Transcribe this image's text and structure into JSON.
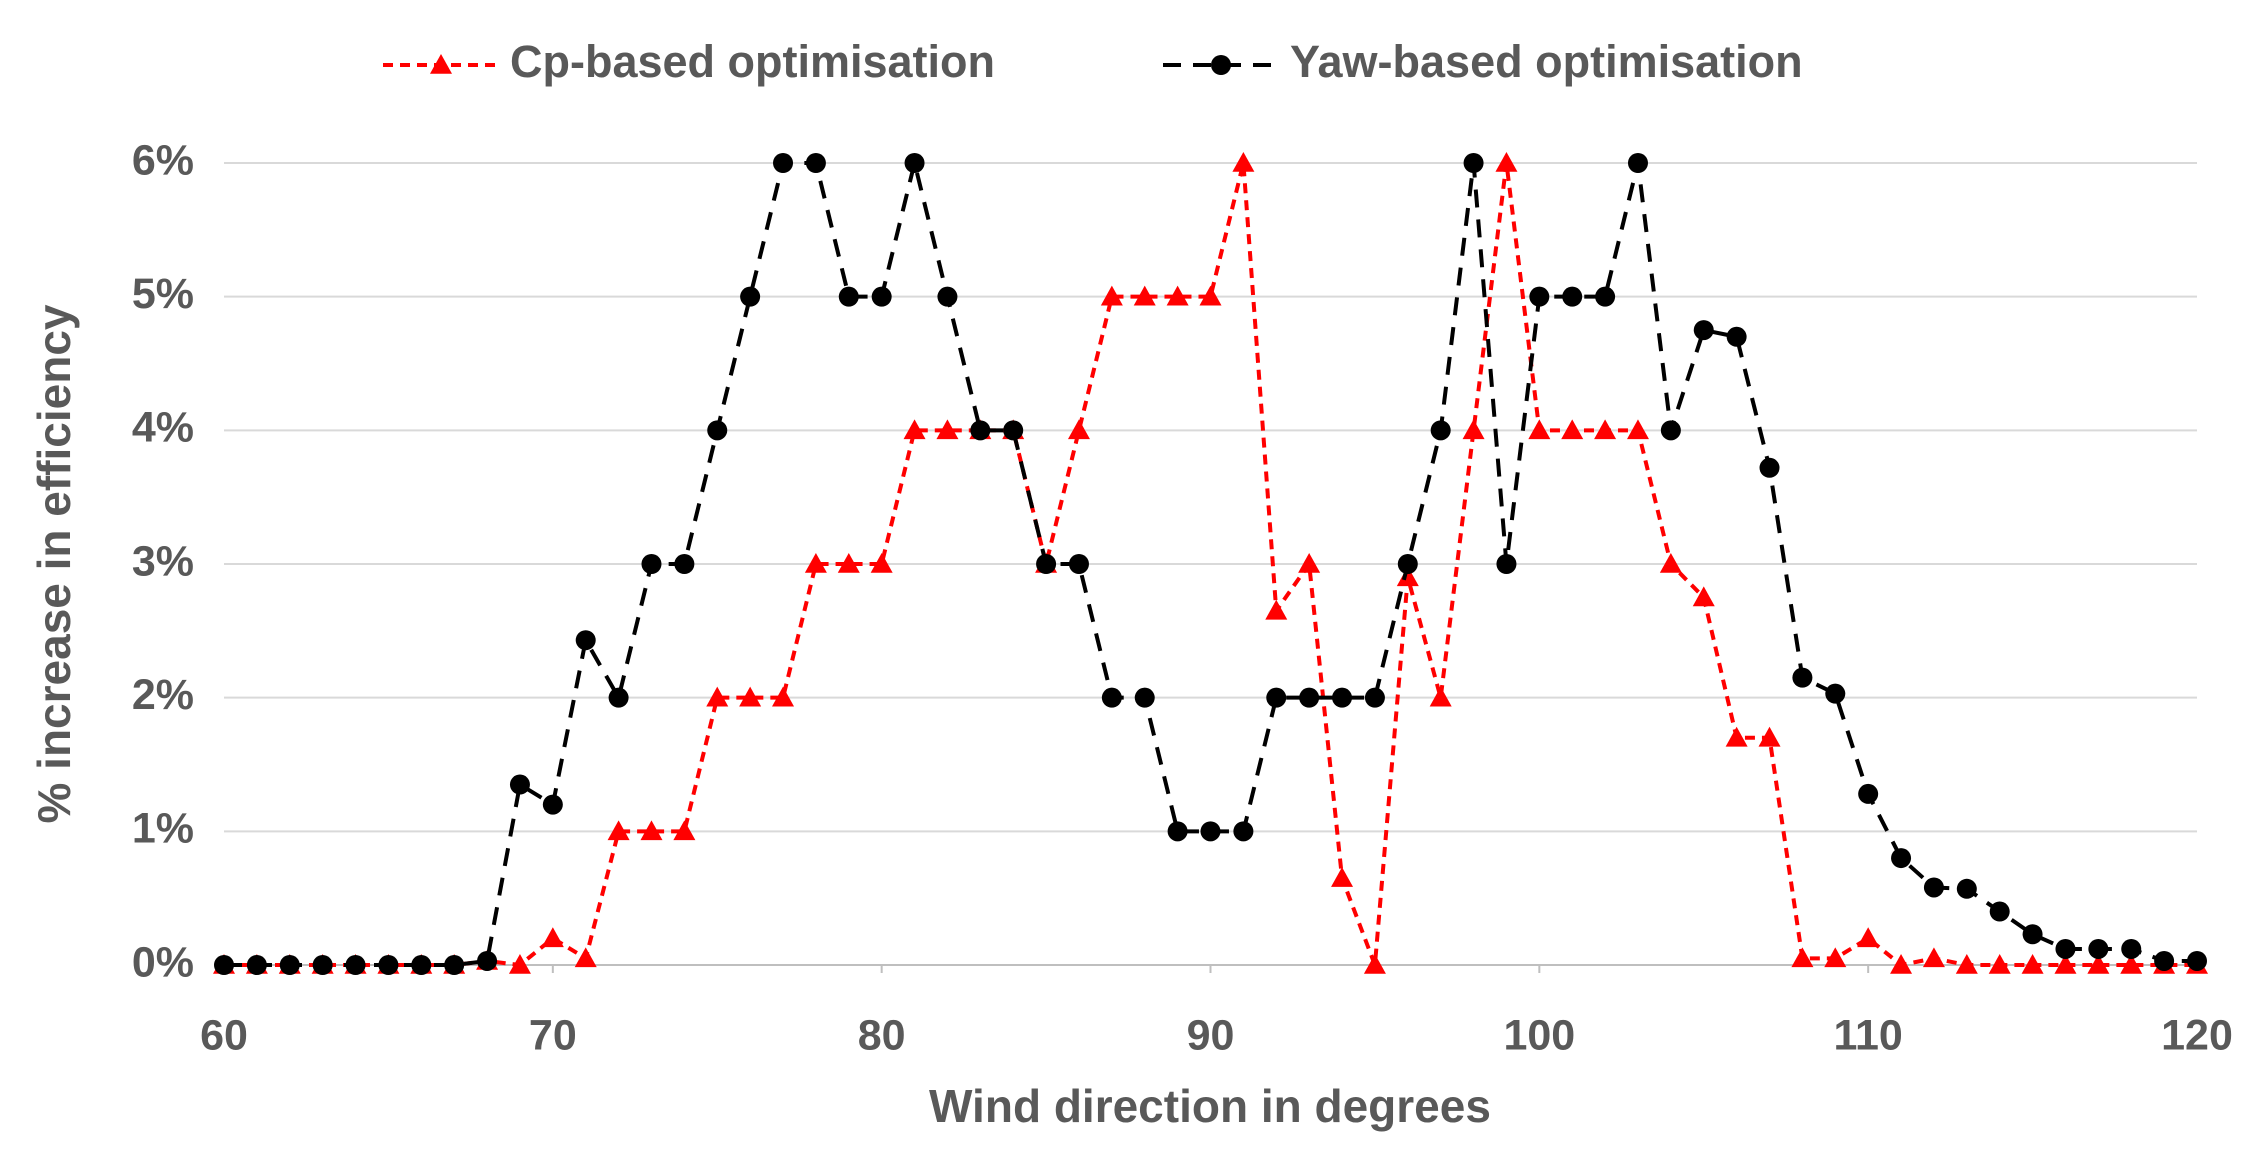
{
  "chart_data": {
    "type": "line",
    "x_label": "Wind direction in degrees",
    "y_label": "% increase in efficiency",
    "x": [
      60,
      61,
      62,
      63,
      64,
      65,
      66,
      67,
      68,
      69,
      70,
      71,
      72,
      73,
      74,
      75,
      76,
      77,
      78,
      79,
      80,
      81,
      82,
      83,
      84,
      85,
      86,
      87,
      88,
      89,
      90,
      91,
      92,
      93,
      94,
      95,
      96,
      97,
      98,
      99,
      100,
      101,
      102,
      103,
      104,
      105,
      106,
      107,
      108,
      109,
      110,
      111,
      112,
      113,
      114,
      115,
      116,
      117,
      118,
      119,
      120
    ],
    "xlim": [
      60,
      120
    ],
    "xticks": [
      60,
      70,
      80,
      90,
      100,
      110,
      120
    ],
    "ylim": [
      0,
      6
    ],
    "yticks": [
      {
        "value": 0,
        "label": "0%"
      },
      {
        "value": 1,
        "label": "1%"
      },
      {
        "value": 2,
        "label": "2%"
      },
      {
        "value": 3,
        "label": "3%"
      },
      {
        "value": 4,
        "label": "4%"
      },
      {
        "value": 5,
        "label": "5%"
      },
      {
        "value": 6,
        "label": "6%"
      }
    ],
    "grid": true,
    "legend": "top",
    "series": [
      {
        "name": "Cp-based optimisation",
        "color": "#ff0000",
        "marker": "triangle",
        "values": [
          0,
          0,
          0,
          0,
          0,
          0,
          0,
          0,
          0.03,
          0,
          0.2,
          0.05,
          1,
          1,
          1,
          2,
          2,
          2,
          3,
          3,
          3,
          4,
          4,
          4,
          4,
          3,
          4,
          5,
          5,
          5,
          5,
          6,
          2.65,
          3,
          0.65,
          0,
          2.9,
          2,
          4,
          6,
          4,
          4,
          4,
          4,
          3,
          2.75,
          1.7,
          1.7,
          0.05,
          0.05,
          0.2,
          0,
          0.05,
          0,
          0,
          0,
          0,
          0,
          0,
          0,
          0
        ]
      },
      {
        "name": "Yaw-based optimisation",
        "color": "#000000",
        "marker": "circle",
        "values": [
          0,
          0,
          0,
          0,
          0,
          0,
          0,
          0,
          0.03,
          1.35,
          1.2,
          2.43,
          2,
          3,
          3,
          4,
          5,
          6,
          6,
          5,
          5,
          6,
          5,
          4,
          4,
          3,
          3,
          2,
          2,
          1,
          1,
          1,
          2,
          2,
          2,
          2,
          3,
          4,
          6,
          3,
          5,
          5,
          5,
          6,
          4,
          4.75,
          4.7,
          3.72,
          2.15,
          2.03,
          1.28,
          0.8,
          0.58,
          0.57,
          0.4,
          0.23,
          0.12,
          0.12,
          0.12,
          0.03,
          0.03
        ]
      }
    ]
  }
}
